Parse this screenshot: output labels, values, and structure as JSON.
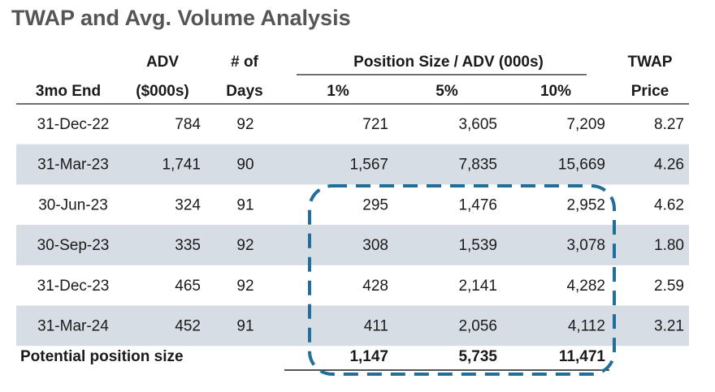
{
  "title": "TWAP and Avg. Volume Analysis",
  "table": {
    "header_top": {
      "adv": "ADV",
      "days": "# of",
      "position": "Position Size / ADV (000s)",
      "twap": "TWAP"
    },
    "header": [
      "3mo End",
      "($000s)",
      "Days",
      "1%",
      "5%",
      "10%",
      "Price"
    ],
    "rows": [
      [
        "31-Dec-22",
        "784",
        "92",
        "721",
        "3,605",
        "7,209",
        "8.27"
      ],
      [
        "31-Mar-23",
        "1,741",
        "90",
        "1,567",
        "7,835",
        "15,669",
        "4.26"
      ],
      [
        "30-Jun-23",
        "324",
        "91",
        "295",
        "1,476",
        "2,952",
        "4.62"
      ],
      [
        "30-Sep-23",
        "335",
        "92",
        "308",
        "1,539",
        "3,078",
        "1.80"
      ],
      [
        "31-Dec-23",
        "465",
        "92",
        "428",
        "2,141",
        "4,282",
        "2.59"
      ],
      [
        "31-Mar-24",
        "452",
        "91",
        "411",
        "2,056",
        "4,112",
        "3.21"
      ]
    ],
    "footer": {
      "label": "Potential position size",
      "values": [
        "1,147",
        "5,735",
        "11,471"
      ]
    }
  }
}
